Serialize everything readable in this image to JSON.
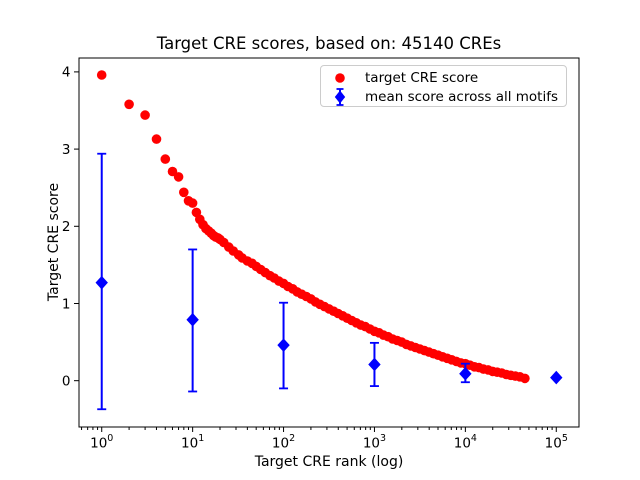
{
  "chart_data": {
    "type": "scatter",
    "title": "Target CRE scores, based on: 45140 CREs",
    "xlabel": "Target CRE rank (log)",
    "ylabel": "Target CRE score",
    "x_scale": "log10",
    "xlim_log10": [
      -0.25,
      5.25
    ],
    "ylim": [
      -0.6,
      4.18
    ],
    "grid": false,
    "x_tick_exponents": [
      0,
      1,
      2,
      3,
      4,
      5
    ],
    "y_ticks": [
      0,
      1,
      2,
      3,
      4
    ],
    "colors": {
      "target_series": "#ff0000",
      "mean_series": "#0000ff",
      "legend_border": "#cccccc",
      "text": "#000000"
    },
    "legend": {
      "position": "upper right",
      "entries": [
        "target CRE score",
        "mean score across all motifs"
      ]
    },
    "series": [
      {
        "name": "target CRE score",
        "marker": "circle",
        "color": "#ff0000",
        "points": [
          [
            1,
            3.96
          ],
          [
            2,
            3.58
          ],
          [
            3,
            3.44
          ],
          [
            4,
            3.13
          ],
          [
            5,
            2.87
          ],
          [
            6,
            2.71
          ],
          [
            7,
            2.64
          ],
          [
            8,
            2.44
          ],
          [
            9,
            2.33
          ],
          [
            10,
            2.3
          ],
          [
            11,
            2.18
          ],
          [
            12,
            2.09
          ],
          [
            13,
            2.02
          ],
          [
            14,
            1.97
          ],
          [
            15,
            1.94
          ],
          [
            16,
            1.91
          ],
          [
            17,
            1.88
          ],
          [
            18,
            1.86
          ],
          [
            19,
            1.85
          ],
          [
            20,
            1.83
          ],
          [
            22,
            1.79
          ],
          [
            25,
            1.73
          ],
          [
            28,
            1.68
          ],
          [
            32,
            1.63
          ],
          [
            35,
            1.59
          ],
          [
            40,
            1.55
          ],
          [
            45,
            1.52
          ],
          [
            50,
            1.48
          ],
          [
            56,
            1.44
          ],
          [
            63,
            1.4
          ],
          [
            71,
            1.36
          ],
          [
            79,
            1.33
          ],
          [
            89,
            1.29
          ],
          [
            100,
            1.26
          ],
          [
            112,
            1.22
          ],
          [
            126,
            1.19
          ],
          [
            141,
            1.15
          ],
          [
            158,
            1.12
          ],
          [
            178,
            1.09
          ],
          [
            200,
            1.06
          ],
          [
            224,
            1.02
          ],
          [
            251,
            0.99
          ],
          [
            282,
            0.96
          ],
          [
            316,
            0.93
          ],
          [
            355,
            0.9
          ],
          [
            398,
            0.87
          ],
          [
            447,
            0.84
          ],
          [
            501,
            0.81
          ],
          [
            562,
            0.78
          ],
          [
            631,
            0.75
          ],
          [
            708,
            0.72
          ],
          [
            794,
            0.7
          ],
          [
            891,
            0.67
          ],
          [
            1000,
            0.64
          ],
          [
            1122,
            0.62
          ],
          [
            1259,
            0.59
          ],
          [
            1413,
            0.57
          ],
          [
            1585,
            0.54
          ],
          [
            1778,
            0.52
          ],
          [
            1995,
            0.5
          ],
          [
            2239,
            0.47
          ],
          [
            2512,
            0.45
          ],
          [
            2818,
            0.43
          ],
          [
            3162,
            0.41
          ],
          [
            3548,
            0.39
          ],
          [
            3981,
            0.37
          ],
          [
            4467,
            0.35
          ],
          [
            5012,
            0.33
          ],
          [
            5623,
            0.31
          ],
          [
            6310,
            0.29
          ],
          [
            7079,
            0.27
          ],
          [
            7943,
            0.25
          ],
          [
            8913,
            0.23
          ],
          [
            10000,
            0.22
          ],
          [
            11220,
            0.2
          ],
          [
            12589,
            0.18
          ],
          [
            14125,
            0.17
          ],
          [
            15849,
            0.15
          ],
          [
            17783,
            0.14
          ],
          [
            19953,
            0.12
          ],
          [
            22387,
            0.11
          ],
          [
            25119,
            0.1
          ],
          [
            28184,
            0.08
          ],
          [
            31623,
            0.07
          ],
          [
            35481,
            0.06
          ],
          [
            39811,
            0.05
          ],
          [
            45140,
            0.03
          ]
        ]
      },
      {
        "name": "mean score across all motifs",
        "marker": "diamond",
        "color": "#0000ff",
        "points": [
          {
            "x": 1,
            "y": 1.27,
            "err_low": -0.37,
            "err_high": 2.94
          },
          {
            "x": 10,
            "y": 0.79,
            "err_low": -0.14,
            "err_high": 1.7
          },
          {
            "x": 100,
            "y": 0.46,
            "err_low": -0.1,
            "err_high": 1.01
          },
          {
            "x": 1000,
            "y": 0.21,
            "err_low": -0.07,
            "err_high": 0.49
          },
          {
            "x": 10000,
            "y": 0.09,
            "err_low": -0.02,
            "err_high": 0.22
          },
          {
            "x": 100000,
            "y": 0.04,
            "err_low": 0.04,
            "err_high": 0.04
          }
        ]
      }
    ]
  }
}
